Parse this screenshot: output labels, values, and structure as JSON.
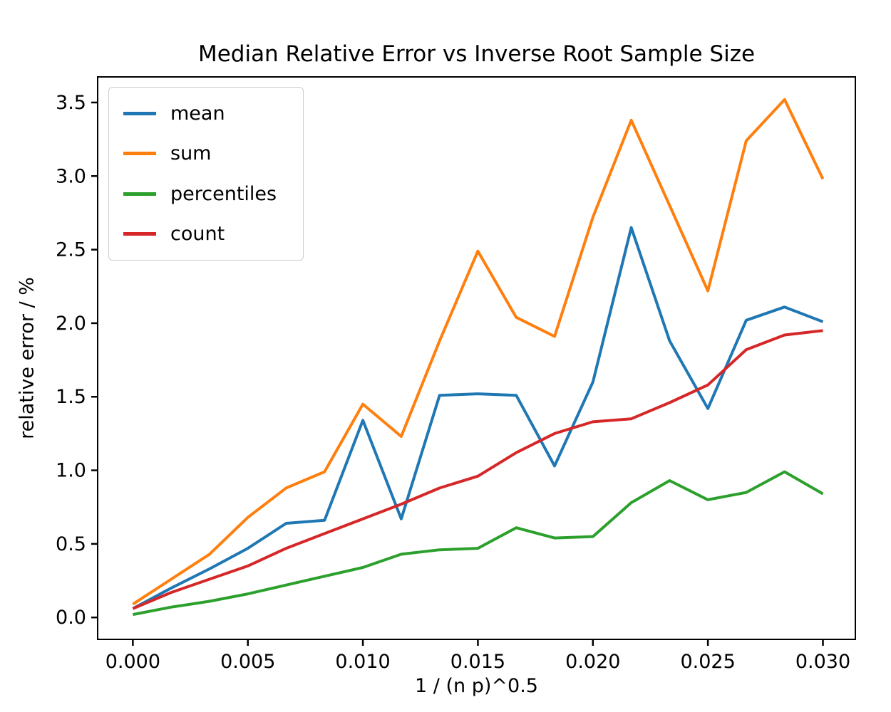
{
  "chart_data": {
    "type": "line",
    "title": "Median Relative Error vs Inverse Root Sample Size",
    "xlabel": "1 / (n p)^0.5",
    "ylabel": "relative error / %",
    "grid": false,
    "legend_position": "upper left",
    "xlim": [
      -0.00153,
      0.03141
    ],
    "ylim": [
      -0.149,
      3.674
    ],
    "xticks": {
      "values": [
        0.0,
        0.005,
        0.01,
        0.015,
        0.02,
        0.025,
        0.03
      ],
      "labels": [
        "0.000",
        "0.005",
        "0.010",
        "0.015",
        "0.020",
        "0.025",
        "0.030"
      ]
    },
    "yticks": {
      "values": [
        0.0,
        0.5,
        1.0,
        1.5,
        2.0,
        2.5,
        3.0,
        3.5
      ],
      "labels": [
        "0.0",
        "0.5",
        "1.0",
        "1.5",
        "2.0",
        "2.5",
        "3.0",
        "3.5"
      ]
    },
    "x": [
      0.0,
      0.0016667,
      0.0033333,
      0.005,
      0.0066667,
      0.0083333,
      0.01,
      0.0116667,
      0.0133333,
      0.015,
      0.0166667,
      0.0183333,
      0.02,
      0.0216667,
      0.0233333,
      0.025,
      0.0266667,
      0.0283333,
      0.03
    ],
    "series": [
      {
        "name": "mean",
        "color": "#1f77b4",
        "values": [
          0.06,
          0.2,
          0.33,
          0.47,
          0.64,
          0.66,
          1.34,
          0.67,
          1.51,
          1.52,
          1.51,
          1.03,
          1.6,
          2.65,
          1.88,
          1.42,
          2.02,
          2.11,
          2.01
        ]
      },
      {
        "name": "sum",
        "color": "#ff7f0e",
        "values": [
          0.09,
          0.26,
          0.43,
          0.68,
          0.88,
          0.99,
          1.45,
          1.23,
          1.88,
          2.49,
          2.04,
          1.91,
          2.72,
          3.38,
          2.8,
          2.22,
          3.24,
          3.52,
          2.98
        ]
      },
      {
        "name": "percentiles",
        "color": "#2ca02c",
        "values": [
          0.02,
          0.07,
          0.11,
          0.16,
          0.22,
          0.28,
          0.34,
          0.43,
          0.46,
          0.47,
          0.61,
          0.54,
          0.55,
          0.78,
          0.93,
          0.8,
          0.85,
          0.99,
          0.84
        ]
      },
      {
        "name": "count",
        "color": "#d62728",
        "values": [
          0.06,
          0.17,
          0.26,
          0.35,
          0.47,
          0.57,
          0.67,
          0.77,
          0.88,
          0.96,
          1.12,
          1.25,
          1.33,
          1.35,
          1.46,
          1.58,
          1.82,
          1.92,
          1.95
        ]
      }
    ],
    "axis_color": "#000000",
    "line_width": 4
  }
}
